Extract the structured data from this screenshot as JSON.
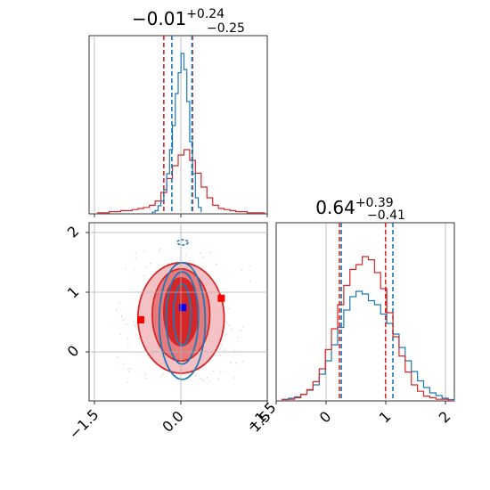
{
  "chart_data": {
    "type": "corner",
    "colors": {
      "series_a": "#1f77b4",
      "series_b": "#d62728",
      "truth": "#0000ff",
      "marker": "#ff0000"
    },
    "grid": true,
    "panels": [
      {
        "panel": "marginal-param-1",
        "title": {
          "median": "−0.01",
          "upper": "+0.24",
          "lower": "−0.25"
        },
        "xlim": [
          -1.6,
          1.5
        ],
        "series_a": {
          "name": "",
          "bin_edges": [
            -0.5,
            -0.45,
            -0.4,
            -0.35,
            -0.3,
            -0.25,
            -0.2,
            -0.15,
            -0.1,
            -0.05,
            0.0,
            0.05,
            0.1,
            0.15,
            0.2,
            0.25,
            0.3,
            0.35
          ],
          "counts": [
            0.01,
            0.02,
            0.05,
            0.08,
            0.15,
            0.25,
            0.4,
            0.55,
            0.75,
            0.88,
            1.0,
            0.9,
            0.7,
            0.45,
            0.25,
            0.1,
            0.04,
            0.01
          ],
          "quantiles": [
            -0.16,
            0.19
          ]
        },
        "series_b": {
          "name": "",
          "bin_edges": [
            -1.45,
            -1.35,
            -1.25,
            -1.15,
            -1.05,
            -0.95,
            -0.85,
            -0.75,
            -0.65,
            -0.55,
            -0.45,
            -0.35,
            -0.25,
            -0.15,
            -0.05,
            0.05,
            0.15,
            0.25,
            0.35,
            0.45,
            0.55,
            0.65,
            0.75,
            0.85,
            0.95,
            1.05,
            1.15,
            1.25,
            1.35,
            1.45
          ],
          "counts": [
            0.01,
            0.01,
            0.02,
            0.02,
            0.03,
            0.03,
            0.04,
            0.05,
            0.06,
            0.08,
            0.12,
            0.2,
            0.33,
            0.45,
            0.55,
            0.6,
            0.5,
            0.38,
            0.25,
            0.15,
            0.08,
            0.05,
            0.04,
            0.03,
            0.02,
            0.02,
            0.01,
            0.01,
            0.01
          ],
          "quantiles": [
            -0.3,
            0.2
          ]
        }
      },
      {
        "panel": "joint-param-1-param-2",
        "xlim": [
          -1.6,
          1.5
        ],
        "ylim": [
          -0.8,
          2.1
        ],
        "contour_levels_series_b": [
          {
            "cx": 0.0,
            "cy": 0.55,
            "rx": 0.75,
            "ry": 0.9
          },
          {
            "cx": 0.0,
            "cy": 0.6,
            "rx": 0.5,
            "ry": 0.75
          },
          {
            "cx": 0.0,
            "cy": 0.65,
            "rx": 0.3,
            "ry": 0.55
          }
        ],
        "contour_levels_series_a": [
          {
            "cx": 0.02,
            "cy": 0.5,
            "rx": 0.4,
            "ry": 0.95
          },
          {
            "cx": 0.02,
            "cy": 0.55,
            "rx": 0.28,
            "ry": 0.75
          },
          {
            "cx": 0.02,
            "cy": 0.6,
            "rx": 0.15,
            "ry": 0.5
          }
        ],
        "truth_point": {
          "x": 0.03,
          "y": 0.72
        },
        "extra_markers": [
          {
            "x": 0.7,
            "y": 0.87
          },
          {
            "x": -0.7,
            "y": 0.52
          }
        ]
      },
      {
        "panel": "marginal-param-2",
        "title": {
          "median": "0.64",
          "upper": "+0.39",
          "lower": "−0.41"
        },
        "xlim": [
          -0.8,
          2.1
        ],
        "series_a": {
          "name": "",
          "bin_edges": [
            -0.7,
            -0.6,
            -0.5,
            -0.4,
            -0.3,
            -0.2,
            -0.1,
            0.0,
            0.1,
            0.2,
            0.3,
            0.4,
            0.5,
            0.6,
            0.7,
            0.8,
            0.9,
            1.0,
            1.1,
            1.2,
            1.3,
            1.4,
            1.5,
            1.6,
            1.7,
            1.8,
            1.9,
            2.0,
            2.1
          ],
          "counts": [
            0.01,
            0.02,
            0.03,
            0.05,
            0.08,
            0.12,
            0.2,
            0.3,
            0.42,
            0.55,
            0.68,
            0.78,
            0.82,
            0.8,
            0.75,
            0.72,
            0.65,
            0.58,
            0.5,
            0.4,
            0.3,
            0.22,
            0.15,
            0.1,
            0.06,
            0.04,
            0.02,
            0.01
          ],
          "quantiles": [
            0.26,
            1.1
          ]
        },
        "series_b": {
          "name": "",
          "bin_edges": [
            -0.7,
            -0.6,
            -0.5,
            -0.4,
            -0.3,
            -0.2,
            -0.1,
            0.0,
            0.1,
            0.2,
            0.3,
            0.4,
            0.5,
            0.6,
            0.7,
            0.8,
            0.9,
            1.0,
            1.1,
            1.2,
            1.3,
            1.4,
            1.5,
            1.6,
            1.7,
            1.8,
            1.9,
            2.0,
            2.1
          ],
          "counts": [
            0.01,
            0.01,
            0.02,
            0.04,
            0.07,
            0.12,
            0.2,
            0.32,
            0.45,
            0.6,
            0.72,
            0.82,
            0.85,
            0.9,
            0.88,
            0.8,
            0.7,
            0.55,
            0.4,
            0.28,
            0.18,
            0.1,
            0.06,
            0.03,
            0.02,
            0.01,
            0.01,
            0.0
          ],
          "quantiles": [
            0.23,
            0.98
          ]
        }
      }
    ],
    "x_ticks_param_1": [
      "−1.5",
      "0.0",
      "1.5"
    ],
    "x_ticks_param_2": [
      "−1.5",
      "0",
      "1",
      "2"
    ],
    "y_ticks_param_2": [
      "2",
      "1",
      "0"
    ]
  }
}
